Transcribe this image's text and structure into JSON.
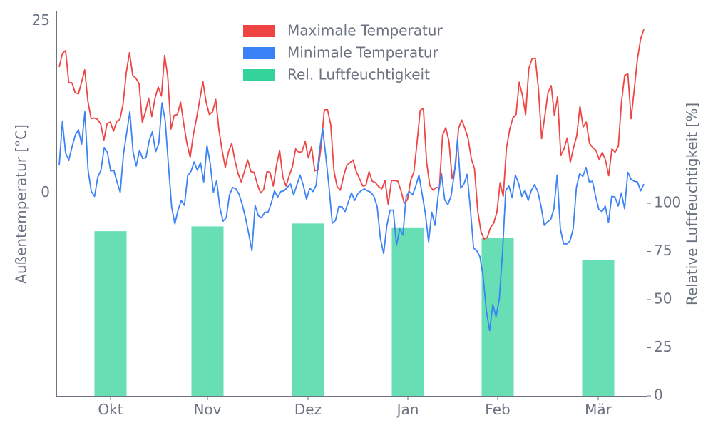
{
  "chart_data": {
    "type": "bar+line",
    "title": "",
    "x_ticks": [
      "Okt",
      "Nov",
      "Dez",
      "Jan",
      "Feb",
      "Mär"
    ],
    "y_left": {
      "label": "Außentemperatur [°C]",
      "ticks": [
        "0",
        "25"
      ],
      "range": [
        -29.5,
        26.5
      ]
    },
    "y_right": {
      "label": "Relative Luftfeuchtigkeit [%]",
      "ticks": [
        "0",
        "25",
        "50",
        "75",
        "100"
      ],
      "range": [
        0,
        200
      ]
    },
    "legend": {
      "placement": "top-center"
    },
    "series": [
      {
        "name": "Maximale Temperatur",
        "type": "line",
        "axis": "left",
        "color": "#ef4444",
        "values": [
          18.3,
          20.3,
          20.7,
          16.1,
          16.0,
          14.6,
          14.4,
          16.1,
          17.9,
          13.3,
          10.8,
          10.9,
          10.7,
          10.0,
          7.7,
          10.1,
          10.3,
          9.0,
          10.4,
          10.7,
          12.9,
          17.5,
          20.4,
          17.1,
          16.7,
          15.9,
          10.3,
          11.8,
          13.8,
          11.1,
          13.8,
          15.4,
          14.1,
          20.0,
          16.9,
          9.3,
          11.3,
          11.4,
          13.2,
          10.0,
          7.2,
          5.2,
          8.5,
          10.9,
          13.6,
          16.2,
          13.2,
          11.4,
          11.8,
          13.6,
          9.2,
          6.2,
          3.7,
          6.0,
          7.2,
          4.8,
          2.8,
          1.6,
          3.2,
          4.8,
          3.1,
          3.0,
          1.3,
          0.0,
          0.5,
          3.1,
          3.0,
          1.0,
          4.0,
          6.2,
          2.3,
          1.0,
          2.5,
          3.8,
          6.4,
          5.9,
          6.0,
          7.5,
          5.1,
          6.7,
          3.2,
          3.4,
          6.8,
          12.1,
          12.1,
          9.9,
          3.2,
          0.9,
          0.4,
          2.4,
          4.0,
          4.4,
          4.8,
          3.1,
          2.1,
          1.0,
          1.1,
          3.1,
          1.7,
          1.5,
          0.9,
          0.6,
          1.8,
          -1.7,
          1.8,
          1.8,
          1.7,
          0.3,
          -1.5,
          -1.0,
          1.8,
          3.0,
          7.3,
          12.0,
          12.3,
          4.5,
          1.1,
          0.4,
          0.8,
          0.7,
          8.4,
          9.5,
          7.5,
          2.1,
          3.6,
          9.4,
          10.6,
          9.4,
          7.9,
          5.0,
          3.5,
          -2.6,
          -5.6,
          -6.7,
          -6.5,
          -5.0,
          -4.4,
          -2.8,
          1.5,
          -0.5,
          6.5,
          9.2,
          10.9,
          11.4,
          16.1,
          14.2,
          11.4,
          18.1,
          19.5,
          19.6,
          15.2,
          7.9,
          11.2,
          14.6,
          15.6,
          11.3,
          14.0,
          5.5,
          6.4,
          8.0,
          4.5,
          6.6,
          8.3,
          12.6,
          9.6,
          10.3,
          7.2,
          6.6,
          6.2,
          4.9,
          5.9,
          4.8,
          2.5,
          6.4,
          5.9,
          6.8,
          13.2,
          17.1,
          17.3,
          10.8,
          15.1,
          19.5,
          22.4,
          23.8
        ]
      },
      {
        "name": "Minimale Temperatur",
        "type": "line",
        "axis": "left",
        "color": "#3b82f6",
        "values": [
          4.0,
          10.4,
          5.8,
          4.8,
          6.7,
          8.4,
          9.2,
          7.1,
          11.8,
          3.3,
          0.2,
          -0.5,
          2.3,
          3.3,
          6.6,
          5.9,
          3.2,
          3.3,
          1.6,
          0.1,
          5.6,
          8.7,
          11.8,
          6.0,
          3.9,
          6.2,
          5.0,
          5.1,
          7.6,
          8.9,
          6.0,
          7.2,
          13.1,
          10.5,
          4.1,
          -2.0,
          -4.5,
          -2.5,
          -1.1,
          -1.8,
          2.5,
          3.1,
          4.5,
          3.3,
          4.4,
          1.6,
          6.9,
          4.3,
          0.1,
          1.8,
          -2.1,
          -4.1,
          -3.6,
          -0.3,
          0.8,
          0.6,
          -0.2,
          -1.7,
          -3.6,
          -5.9,
          -8.4,
          -1.8,
          -3.3,
          -3.6,
          -2.8,
          -2.8,
          -1.5,
          0.3,
          -0.6,
          0.2,
          0.3,
          0.8,
          1.3,
          -0.3,
          1.2,
          2.6,
          1.1,
          -0.9,
          0.7,
          0.2,
          1.1,
          6.0,
          9.4,
          5.3,
          0.8,
          -4.4,
          -4.0,
          -2.0,
          -2.0,
          -2.7,
          -1.3,
          0.0,
          -1.1,
          -0.1,
          0.3,
          0.6,
          0.3,
          0.1,
          -0.5,
          -2.0,
          -6.6,
          -8.8,
          -4.7,
          -2.5,
          -2.5,
          -7.6,
          -5.2,
          -6.1,
          -0.5,
          0.2,
          -0.3,
          1.0,
          2.6,
          -0.2,
          -3.0,
          -7.1,
          -2.8,
          -4.7,
          -0.3,
          2.8,
          -1.0,
          -1.7,
          -0.4,
          2.8,
          7.8,
          0.7,
          1.3,
          2.7,
          -2.3,
          -8.0,
          -8.4,
          -9.3,
          -12.3,
          -17.2,
          -20.0,
          -16.2,
          -18.0,
          -15.4,
          -8.6,
          0.4,
          1.0,
          -0.7,
          2.6,
          1.4,
          -0.5,
          0.4,
          -1.1,
          0.4,
          1.2,
          0.2,
          -1.9,
          -4.7,
          -4.2,
          -3.9,
          -2.3,
          2.6,
          -5.2,
          -7.4,
          -7.4,
          -7.0,
          -5.2,
          0.8,
          2.8,
          2.4,
          3.7,
          1.6,
          1.7,
          -0.5,
          -2.4,
          -2.7,
          -1.9,
          -4.3,
          -0.5,
          -0.6,
          -1.9,
          0.0,
          -2.3,
          3.0,
          2.0,
          1.7,
          1.6,
          0.3,
          1.3
        ]
      },
      {
        "name": "Rel. Luftfeuchtigkeit",
        "type": "bar",
        "axis": "right",
        "color": "#34d399",
        "values": [
          85.5,
          88,
          89.5,
          87.5,
          82,
          70.5
        ]
      }
    ]
  }
}
